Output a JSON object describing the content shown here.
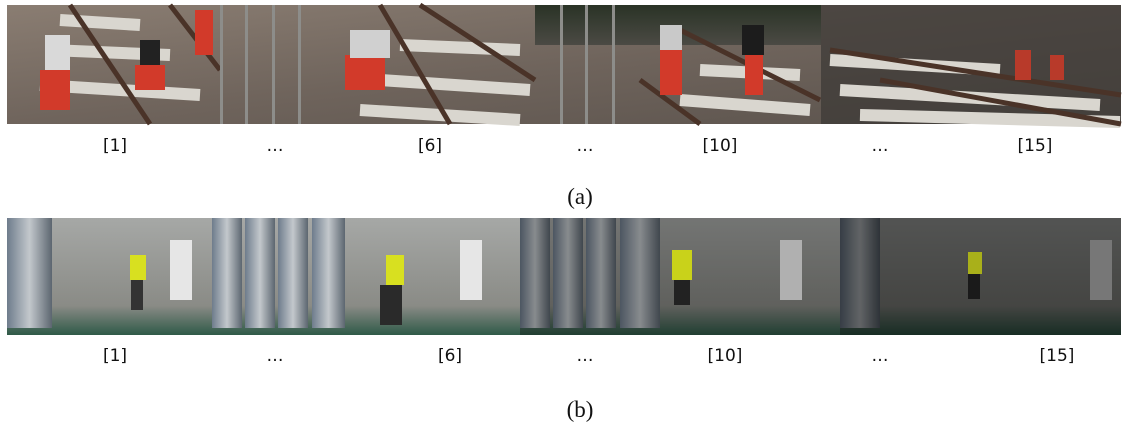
{
  "figures": [
    {
      "frame_labels": [
        "[1]",
        "…",
        "[6]",
        "…",
        "[10]",
        "…",
        "[15]"
      ],
      "caption": "(a)"
    },
    {
      "frame_labels": [
        "[1]",
        "…",
        "[6]",
        "…",
        "[10]",
        "…",
        "[15]"
      ],
      "caption": "(b)"
    }
  ]
}
